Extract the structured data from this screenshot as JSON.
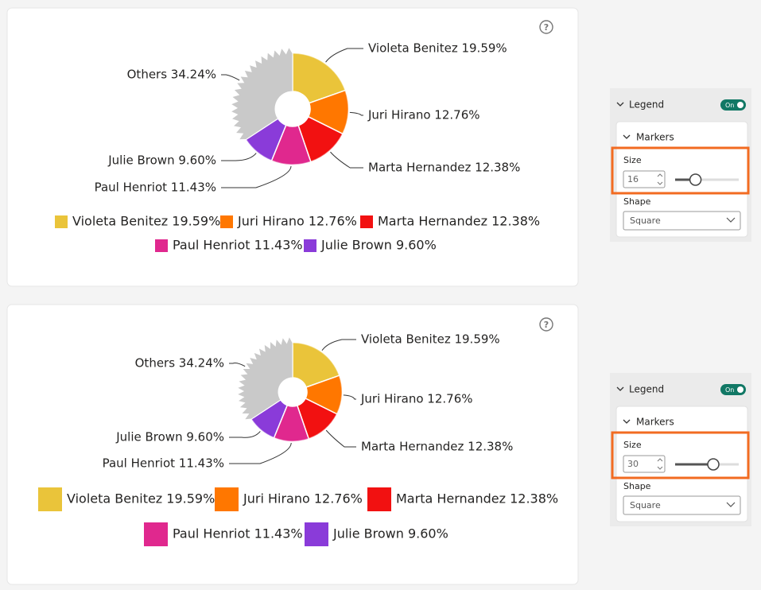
{
  "chart_data": [
    {
      "type": "pie",
      "help_icon": "?",
      "values": [
        19.59,
        12.76,
        12.38,
        11.43,
        9.6
      ],
      "value_labels": [
        "Violeta Benitez 19.59%",
        "Juri Hirano 12.76%",
        "Marta Hernandez 12.38%",
        "Paul Henriot 11.43%",
        "Julie Brown 9.60%"
      ],
      "colors": [
        "#eac43a",
        "#ff7700",
        "#f21111",
        "#e0288e",
        "#8a3bd9"
      ],
      "others": {
        "value": 34.24,
        "label": "Others 34.24%",
        "color": "#c9c9c9"
      },
      "legend_marker_size": 16
    },
    {
      "type": "pie",
      "help_icon": "?",
      "values": [
        19.59,
        12.76,
        12.38,
        11.43,
        9.6
      ],
      "value_labels": [
        "Violeta Benitez 19.59%",
        "Juri Hirano 12.76%",
        "Marta Hernandez 12.38%",
        "Paul Henriot 11.43%",
        "Julie Brown 9.60%"
      ],
      "colors": [
        "#eac43a",
        "#ff7700",
        "#f21111",
        "#e0288e",
        "#8a3bd9"
      ],
      "others": {
        "value": 34.24,
        "label": "Others 34.24%",
        "color": "#c9c9c9"
      },
      "legend_marker_size": 30
    }
  ],
  "panels": [
    {
      "title": "Legend",
      "toggle": "On",
      "section": "Markers",
      "size_label": "Size",
      "shape_label": "Shape",
      "shape": "Square"
    },
    {
      "title": "Legend",
      "toggle": "On",
      "section": "Markers",
      "size_label": "Size",
      "shape_label": "Shape",
      "shape": "Square"
    }
  ]
}
